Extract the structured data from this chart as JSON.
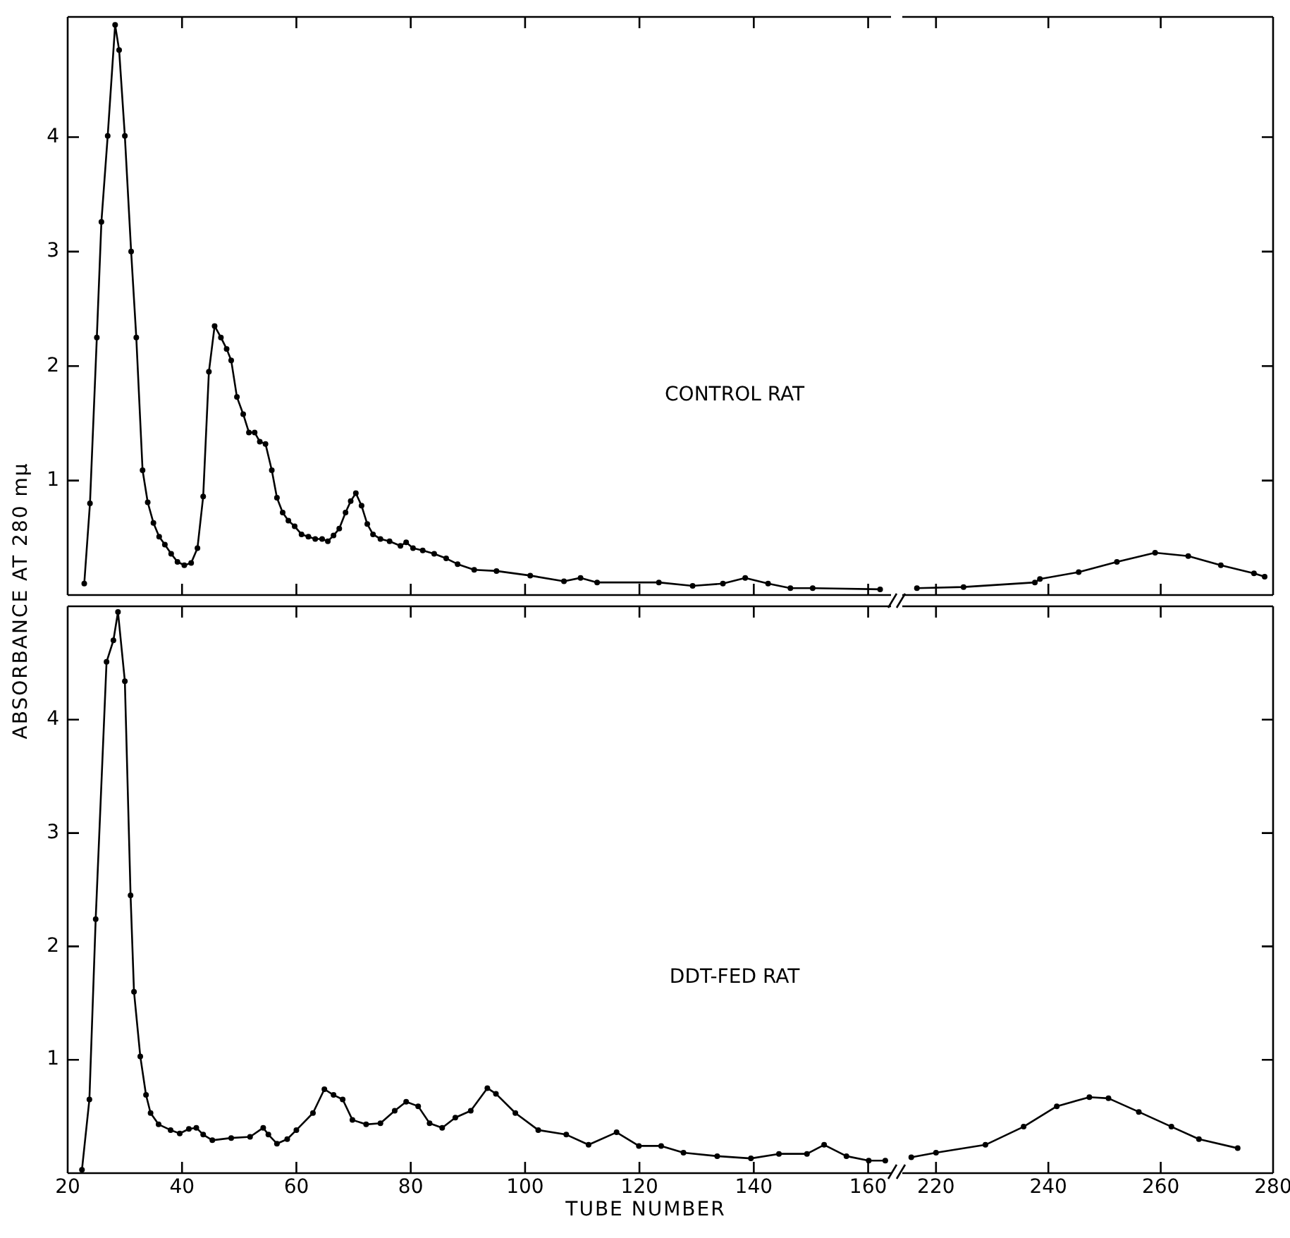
{
  "chart_data": [
    {
      "type": "line",
      "ylabel": "ABSORBANCE AT 280 mμ",
      "annotations": [
        "CONTROL RAT"
      ],
      "marker": "circle",
      "line_style": "solid",
      "tick_labels": "y",
      "xlim": [
        20,
        164
      ],
      "xticks": [
        20,
        40,
        60,
        80,
        100,
        120,
        140,
        160
      ],
      "ylim": [
        0,
        5.05
      ],
      "yticks": [
        1,
        2,
        3,
        4
      ],
      "x": [
        22.9,
        23.9,
        25.1,
        25.9,
        27.0,
        28.3,
        29.0,
        30.0,
        31.1,
        32.0,
        33.1,
        34.0,
        35.0,
        36.0,
        37.0,
        38.1,
        39.2,
        40.4,
        41.6,
        42.7,
        43.7,
        44.7,
        45.7,
        46.8,
        47.8,
        48.6,
        49.6,
        50.7,
        51.7,
        52.7,
        53.6,
        54.6,
        55.7,
        56.6,
        57.6,
        58.6,
        59.7,
        60.9,
        62.1,
        63.3,
        64.5,
        65.5,
        66.5,
        67.5,
        68.6,
        69.5,
        70.4,
        71.4,
        72.4,
        73.4,
        74.7,
        76.3,
        78.2,
        79.2,
        80.4,
        82.1,
        84.1,
        86.2,
        88.2,
        91.1,
        95.0,
        100.9,
        106.8,
        109.7,
        112.6,
        123.4,
        129.3,
        134.6,
        138.5,
        142.5,
        146.4,
        150.3,
        162.1
      ],
      "series": [
        {
          "color": "#000000",
          "values": [
            0.1,
            0.8,
            2.25,
            3.26,
            4.01,
            4.98,
            4.76,
            4.01,
            3.0,
            2.25,
            1.09,
            0.81,
            0.63,
            0.51,
            0.44,
            0.36,
            0.29,
            0.26,
            0.28,
            0.41,
            0.86,
            1.95,
            2.35,
            2.25,
            2.15,
            2.05,
            1.73,
            1.58,
            1.42,
            1.42,
            1.34,
            1.32,
            1.09,
            0.85,
            0.72,
            0.65,
            0.6,
            0.53,
            0.51,
            0.49,
            0.49,
            0.47,
            0.52,
            0.58,
            0.72,
            0.82,
            0.89,
            0.78,
            0.62,
            0.53,
            0.49,
            0.47,
            0.43,
            0.46,
            0.41,
            0.39,
            0.36,
            0.32,
            0.27,
            0.22,
            0.21,
            0.17,
            0.12,
            0.15,
            0.11,
            0.11,
            0.08,
            0.1,
            0.15,
            0.1,
            0.06,
            0.06,
            0.05
          ]
        }
      ]
    },
    {
      "type": "line",
      "marker": "circle",
      "line_style": "solid",
      "tick_labels": false,
      "xlim": [
        214,
        280
      ],
      "xticks": [
        220,
        240,
        260,
        280
      ],
      "ylim": [
        0,
        5.05
      ],
      "yticks": [
        1,
        2,
        3,
        4
      ],
      "x": [
        216.6,
        224.9,
        237.6,
        238.5,
        245.4,
        252.2,
        259.0,
        264.9,
        270.7,
        276.6,
        278.5
      ],
      "series": [
        {
          "color": "#000000",
          "values": [
            0.06,
            0.07,
            0.11,
            0.14,
            0.2,
            0.29,
            0.37,
            0.34,
            0.26,
            0.19,
            0.16
          ]
        }
      ]
    },
    {
      "type": "line",
      "xlabel": "TUBE NUMBER",
      "annotations": [
        "DDT-FED RAT"
      ],
      "marker": "circle",
      "line_style": "solid",
      "xlim": [
        20,
        164
      ],
      "xticks": [
        20,
        40,
        60,
        80,
        100,
        120,
        140,
        160
      ],
      "ylim": [
        0,
        5
      ],
      "yticks": [
        1,
        2,
        3,
        4
      ],
      "x": [
        22.5,
        23.8,
        24.9,
        26.8,
        28.0,
        28.8,
        30.0,
        31.0,
        31.6,
        32.7,
        33.7,
        34.5,
        35.9,
        38.0,
        39.6,
        41.2,
        42.5,
        43.7,
        45.3,
        48.6,
        51.9,
        54.2,
        55.1,
        56.6,
        58.4,
        60.0,
        62.9,
        64.9,
        66.5,
        68.1,
        69.8,
        72.2,
        74.7,
        77.2,
        79.2,
        81.3,
        83.3,
        85.5,
        87.8,
        90.5,
        93.4,
        94.9,
        98.3,
        102.3,
        107.2,
        111.1,
        116.0,
        119.9,
        123.8,
        127.7,
        133.6,
        139.5,
        144.4,
        149.3,
        152.3,
        156.2,
        160.1,
        163.0
      ],
      "series": [
        {
          "color": "#000000",
          "values": [
            0.03,
            0.65,
            2.24,
            4.51,
            4.7,
            4.95,
            4.34,
            2.45,
            1.6,
            1.03,
            0.69,
            0.53,
            0.43,
            0.38,
            0.35,
            0.39,
            0.4,
            0.34,
            0.29,
            0.31,
            0.32,
            0.4,
            0.34,
            0.26,
            0.3,
            0.38,
            0.53,
            0.74,
            0.69,
            0.65,
            0.47,
            0.43,
            0.44,
            0.55,
            0.63,
            0.59,
            0.44,
            0.4,
            0.49,
            0.55,
            0.75,
            0.7,
            0.53,
            0.38,
            0.34,
            0.25,
            0.36,
            0.24,
            0.24,
            0.18,
            0.15,
            0.13,
            0.17,
            0.17,
            0.25,
            0.15,
            0.11,
            0.11
          ]
        }
      ]
    },
    {
      "type": "line",
      "marker": "circle",
      "line_style": "solid",
      "tick_labels": "x",
      "xlim": [
        214,
        280
      ],
      "xticks": [
        220,
        240,
        260,
        280
      ],
      "ylim": [
        0,
        5
      ],
      "yticks": [
        1,
        2,
        3,
        4
      ],
      "x": [
        215.6,
        220.0,
        228.8,
        235.6,
        241.5,
        247.3,
        250.7,
        256.1,
        261.9,
        266.8,
        273.7
      ],
      "series": [
        {
          "color": "#000000",
          "values": [
            0.14,
            0.18,
            0.25,
            0.41,
            0.59,
            0.67,
            0.66,
            0.54,
            0.41,
            0.3,
            0.22
          ]
        }
      ]
    }
  ]
}
